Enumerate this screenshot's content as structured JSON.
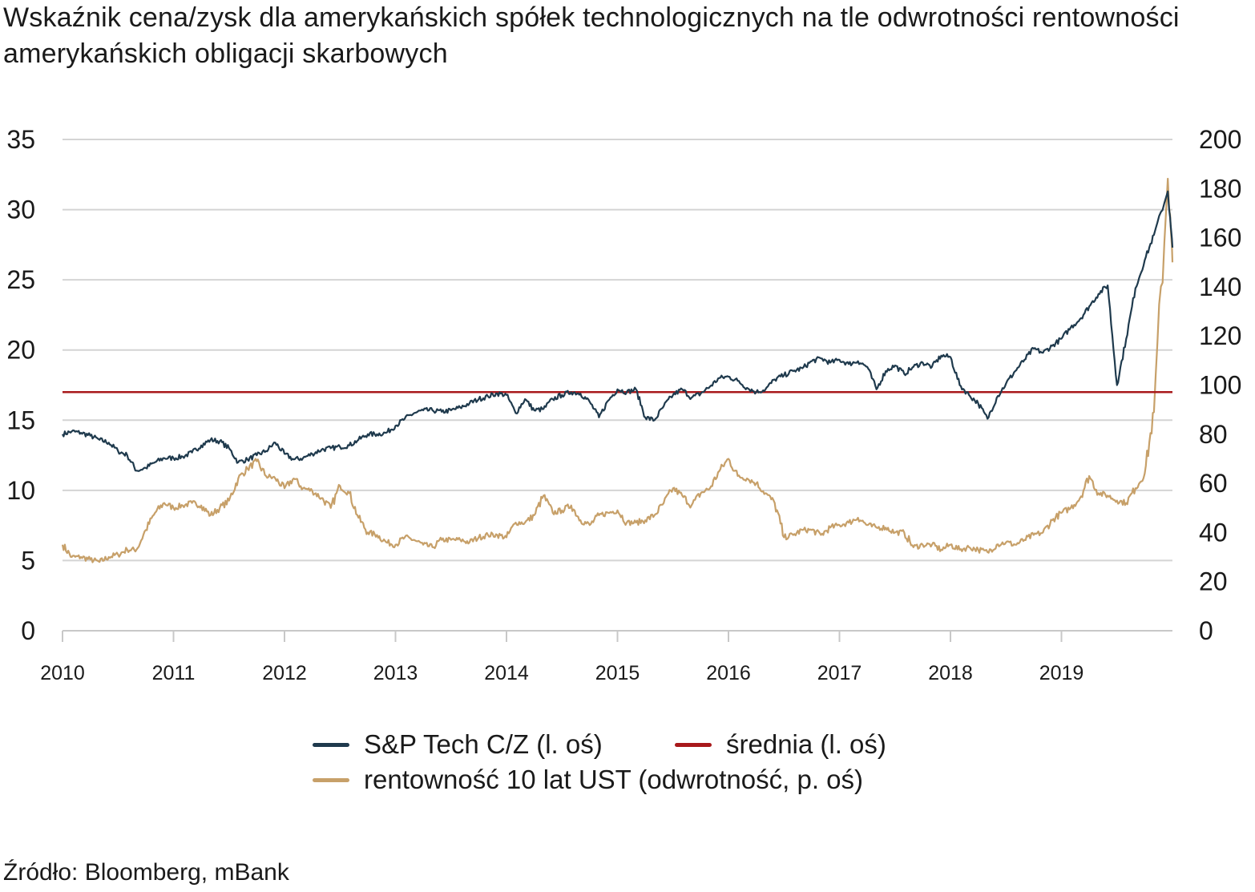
{
  "chart_data": {
    "type": "line",
    "title": "Wskaźnik cena/zysk dla amerykańskich spółek technologicznych na tle odwrotności rentowności amerykańskich obligacji skarbowych",
    "source": "Źródło: Bloomberg, mBank",
    "x_ticks": [
      "2010",
      "2011",
      "2012",
      "2013",
      "2014",
      "2015",
      "2016",
      "2017",
      "2018",
      "2019"
    ],
    "x_range": [
      "2010-01",
      "2019-12"
    ],
    "y_left": {
      "ticks": [
        0,
        5,
        10,
        15,
        20,
        25,
        30,
        35
      ],
      "range": [
        0,
        35
      ]
    },
    "y_right": {
      "ticks": [
        0,
        20,
        40,
        60,
        80,
        100,
        120,
        140,
        160,
        180,
        200
      ],
      "range": [
        0,
        200
      ]
    },
    "grid": "horizontal",
    "legend_placement": "bottom",
    "series": [
      {
        "name": "S&P Tech C/Z (l. oś)",
        "axis": "left",
        "color": "#1f3a4d",
        "points": [
          [
            "2010-01",
            14.0
          ],
          [
            "2010-02",
            14.2
          ],
          [
            "2010-03",
            14.1
          ],
          [
            "2010-04",
            13.9
          ],
          [
            "2010-05",
            13.6
          ],
          [
            "2010-06",
            13.4
          ],
          [
            "2010-07",
            12.8
          ],
          [
            "2010-08",
            12.5
          ],
          [
            "2010-09",
            11.4
          ],
          [
            "2010-10",
            11.6
          ],
          [
            "2010-11",
            12.0
          ],
          [
            "2010-12",
            12.3
          ],
          [
            "2011-01",
            12.3
          ],
          [
            "2011-02",
            12.4
          ],
          [
            "2011-03",
            12.7
          ],
          [
            "2011-04",
            13.2
          ],
          [
            "2011-05",
            13.6
          ],
          [
            "2011-06",
            13.5
          ],
          [
            "2011-07",
            13.0
          ],
          [
            "2011-08",
            12.0
          ],
          [
            "2011-09",
            12.2
          ],
          [
            "2011-10",
            12.5
          ],
          [
            "2011-11",
            12.8
          ],
          [
            "2011-12",
            13.4
          ],
          [
            "2012-01",
            12.6
          ],
          [
            "2012-02",
            12.2
          ],
          [
            "2012-03",
            12.3
          ],
          [
            "2012-04",
            12.6
          ],
          [
            "2012-05",
            12.9
          ],
          [
            "2012-06",
            13.0
          ],
          [
            "2012-07",
            13.1
          ],
          [
            "2012-08",
            13.2
          ],
          [
            "2012-09",
            13.6
          ],
          [
            "2012-10",
            14.0
          ],
          [
            "2012-11",
            14.0
          ],
          [
            "2012-12",
            14.1
          ],
          [
            "2013-01",
            14.6
          ],
          [
            "2013-02",
            15.1
          ],
          [
            "2013-03",
            15.5
          ],
          [
            "2013-04",
            15.7
          ],
          [
            "2013-05",
            15.7
          ],
          [
            "2013-06",
            15.6
          ],
          [
            "2013-07",
            15.7
          ],
          [
            "2013-08",
            15.9
          ],
          [
            "2013-09",
            16.2
          ],
          [
            "2013-10",
            16.5
          ],
          [
            "2013-11",
            16.7
          ],
          [
            "2013-12",
            16.9
          ],
          [
            "2014-01",
            16.8
          ],
          [
            "2014-02",
            15.5
          ],
          [
            "2014-03",
            16.5
          ],
          [
            "2014-04",
            15.7
          ],
          [
            "2014-05",
            15.8
          ],
          [
            "2014-06",
            16.5
          ],
          [
            "2014-07",
            16.8
          ],
          [
            "2014-08",
            17.0
          ],
          [
            "2014-09",
            16.9
          ],
          [
            "2014-10",
            16.3
          ],
          [
            "2014-11",
            15.2
          ],
          [
            "2014-12",
            16.4
          ],
          [
            "2015-01",
            17.2
          ],
          [
            "2015-02",
            17.0
          ],
          [
            "2015-03",
            17.2
          ],
          [
            "2015-04",
            15.2
          ],
          [
            "2015-05",
            15.0
          ],
          [
            "2015-06",
            16.0
          ],
          [
            "2015-07",
            16.8
          ],
          [
            "2015-08",
            17.2
          ],
          [
            "2015-09",
            16.6
          ],
          [
            "2015-10",
            16.9
          ],
          [
            "2015-11",
            17.4
          ],
          [
            "2015-12",
            18.0
          ],
          [
            "2016-01",
            18.1
          ],
          [
            "2016-02",
            17.8
          ],
          [
            "2016-03",
            17.3
          ],
          [
            "2016-04",
            17.0
          ],
          [
            "2016-05",
            17.2
          ],
          [
            "2016-06",
            17.9
          ],
          [
            "2016-07",
            18.2
          ],
          [
            "2016-08",
            18.5
          ],
          [
            "2016-09",
            18.7
          ],
          [
            "2016-10",
            19.2
          ],
          [
            "2016-11",
            19.4
          ],
          [
            "2016-12",
            19.1
          ],
          [
            "2017-01",
            19.3
          ],
          [
            "2017-02",
            19.0
          ],
          [
            "2017-03",
            19.2
          ],
          [
            "2017-04",
            18.8
          ],
          [
            "2017-05",
            17.2
          ],
          [
            "2017-06",
            18.5
          ],
          [
            "2017-07",
            18.9
          ],
          [
            "2017-08",
            18.3
          ],
          [
            "2017-09",
            18.8
          ],
          [
            "2017-10",
            19.1
          ],
          [
            "2017-11",
            18.8
          ],
          [
            "2017-12",
            19.6
          ],
          [
            "2018-01",
            19.5
          ],
          [
            "2018-02",
            17.5
          ],
          [
            "2018-03",
            16.8
          ],
          [
            "2018-04",
            16.2
          ],
          [
            "2018-05",
            15.1
          ],
          [
            "2018-06",
            16.6
          ],
          [
            "2018-07",
            17.6
          ],
          [
            "2018-08",
            18.5
          ],
          [
            "2018-09",
            19.3
          ],
          [
            "2018-10",
            20.1
          ],
          [
            "2018-11",
            19.8
          ],
          [
            "2018-12",
            20.3
          ],
          [
            "2019-01",
            20.8
          ],
          [
            "2019-02",
            21.6
          ],
          [
            "2019-03",
            22.2
          ],
          [
            "2019-04",
            23.1
          ],
          [
            "2019-05",
            24.0
          ],
          [
            "2019-06",
            24.6
          ],
          [
            "2019-07",
            17.5
          ],
          [
            "2019-08",
            20.8
          ],
          [
            "2019-09",
            24.4
          ],
          [
            "2019-10",
            26.4
          ],
          [
            "2019-11",
            28.2
          ],
          [
            "2019-12",
            31.3
          ],
          [
            "2019-12",
            27.3
          ]
        ]
      },
      {
        "name": "średnia (l. oś)",
        "axis": "left",
        "color": "#a8191b",
        "points": [
          [
            "2010-01",
            17.0
          ],
          [
            "2019-12",
            17.0
          ]
        ]
      },
      {
        "name": "rentowność 10 lat UST (odwrotność, p. oś)",
        "axis": "right",
        "color": "#c7a069",
        "points": [
          [
            "2010-01",
            35
          ],
          [
            "2010-02",
            30
          ],
          [
            "2010-03",
            30
          ],
          [
            "2010-04",
            29
          ],
          [
            "2010-05",
            28
          ],
          [
            "2010-06",
            30
          ],
          [
            "2010-07",
            31
          ],
          [
            "2010-08",
            33
          ],
          [
            "2010-09",
            33
          ],
          [
            "2010-10",
            41
          ],
          [
            "2010-11",
            48
          ],
          [
            "2010-12",
            52
          ],
          [
            "2011-01",
            50
          ],
          [
            "2011-02",
            51
          ],
          [
            "2011-03",
            52
          ],
          [
            "2011-04",
            51
          ],
          [
            "2011-05",
            47
          ],
          [
            "2011-06",
            50
          ],
          [
            "2011-07",
            53
          ],
          [
            "2011-08",
            62
          ],
          [
            "2011-09",
            66
          ],
          [
            "2011-10",
            69
          ],
          [
            "2011-11",
            63
          ],
          [
            "2011-12",
            62
          ],
          [
            "2012-01",
            58
          ],
          [
            "2012-02",
            62
          ],
          [
            "2012-03",
            58
          ],
          [
            "2012-04",
            57
          ],
          [
            "2012-05",
            54
          ],
          [
            "2012-06",
            50
          ],
          [
            "2012-07",
            59
          ],
          [
            "2012-08",
            56
          ],
          [
            "2012-09",
            46
          ],
          [
            "2012-10",
            40
          ],
          [
            "2012-11",
            39
          ],
          [
            "2012-12",
            36
          ],
          [
            "2013-01",
            35
          ],
          [
            "2013-02",
            38
          ],
          [
            "2013-03",
            37
          ],
          [
            "2013-04",
            35
          ],
          [
            "2013-05",
            34
          ],
          [
            "2013-06",
            37
          ],
          [
            "2013-07",
            37
          ],
          [
            "2013-08",
            37
          ],
          [
            "2013-09",
            36
          ],
          [
            "2013-10",
            38
          ],
          [
            "2013-11",
            39
          ],
          [
            "2013-12",
            39
          ],
          [
            "2014-01",
            38
          ],
          [
            "2014-02",
            44
          ],
          [
            "2014-03",
            44
          ],
          [
            "2014-04",
            47
          ],
          [
            "2014-05",
            55
          ],
          [
            "2014-06",
            48
          ],
          [
            "2014-07",
            49
          ],
          [
            "2014-08",
            51
          ],
          [
            "2014-09",
            45
          ],
          [
            "2014-10",
            43
          ],
          [
            "2014-11",
            47
          ],
          [
            "2014-12",
            48
          ],
          [
            "2015-01",
            49
          ],
          [
            "2015-02",
            44
          ],
          [
            "2015-03",
            44
          ],
          [
            "2015-04",
            45
          ],
          [
            "2015-05",
            47
          ],
          [
            "2015-06",
            52
          ],
          [
            "2015-07",
            58
          ],
          [
            "2015-08",
            55
          ],
          [
            "2015-09",
            51
          ],
          [
            "2015-10",
            56
          ],
          [
            "2015-11",
            58
          ],
          [
            "2015-12",
            65
          ],
          [
            "2016-01",
            70
          ],
          [
            "2016-02",
            63
          ],
          [
            "2016-03",
            62
          ],
          [
            "2016-04",
            60
          ],
          [
            "2016-05",
            56
          ],
          [
            "2016-06",
            52
          ],
          [
            "2016-07",
            38
          ],
          [
            "2016-08",
            39
          ],
          [
            "2016-09",
            41
          ],
          [
            "2016-10",
            41
          ],
          [
            "2016-11",
            39
          ],
          [
            "2016-12",
            42
          ],
          [
            "2017-01",
            43
          ],
          [
            "2017-02",
            44
          ],
          [
            "2017-03",
            46
          ],
          [
            "2017-04",
            43
          ],
          [
            "2017-05",
            42
          ],
          [
            "2017-06",
            42
          ],
          [
            "2017-07",
            40
          ],
          [
            "2017-08",
            40
          ],
          [
            "2017-09",
            34
          ],
          [
            "2017-10",
            35
          ],
          [
            "2017-11",
            35
          ],
          [
            "2017-12",
            33
          ],
          [
            "2018-01",
            35
          ],
          [
            "2018-02",
            33
          ],
          [
            "2018-03",
            34
          ],
          [
            "2018-04",
            33
          ],
          [
            "2018-05",
            32
          ],
          [
            "2018-06",
            35
          ],
          [
            "2018-07",
            36
          ],
          [
            "2018-08",
            35
          ],
          [
            "2018-09",
            37
          ],
          [
            "2018-10",
            39
          ],
          [
            "2018-11",
            40
          ],
          [
            "2018-12",
            45
          ],
          [
            "2019-01",
            48
          ],
          [
            "2019-02",
            50
          ],
          [
            "2019-03",
            54
          ],
          [
            "2019-04",
            63
          ],
          [
            "2019-05",
            56
          ],
          [
            "2019-06",
            55
          ],
          [
            "2019-07",
            53
          ],
          [
            "2019-08",
            52
          ],
          [
            "2019-09",
            58
          ],
          [
            "2019-10",
            64
          ],
          [
            "2019-11",
            89
          ],
          [
            "2019-12",
            184
          ],
          [
            "2019-12",
            150
          ]
        ]
      }
    ]
  }
}
